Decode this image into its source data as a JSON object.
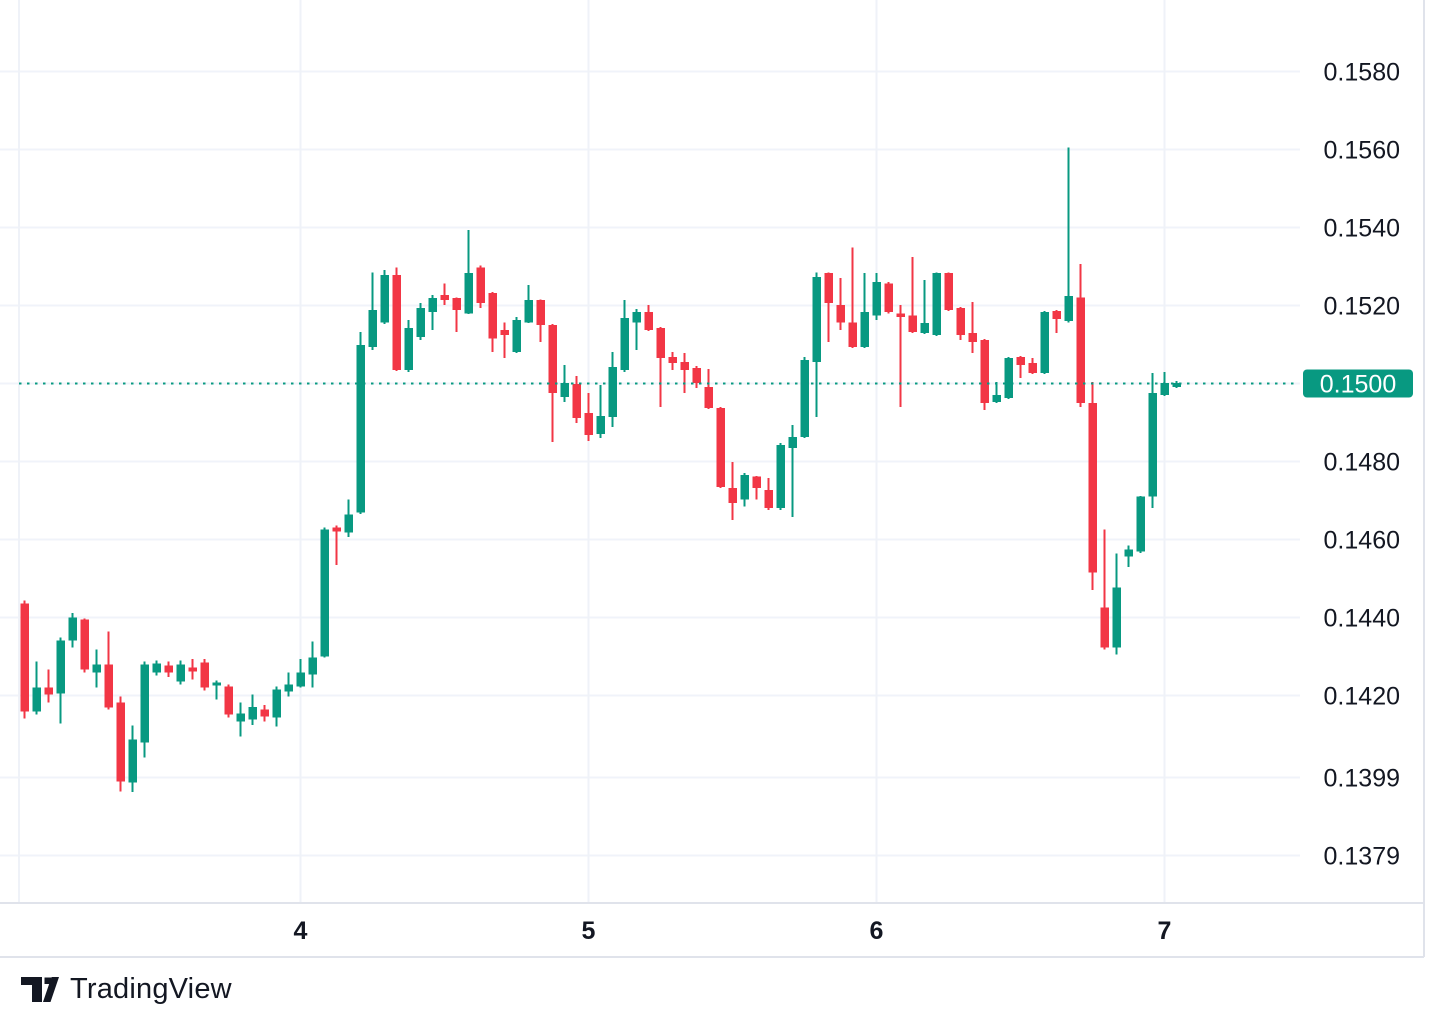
{
  "branding": {
    "logo_text": "TradingView"
  },
  "chart_data": {
    "type": "candlestick",
    "title": "",
    "grid": true,
    "legend": false,
    "timeframe_hint": "hourly candles, day boundaries labeled",
    "colors": {
      "background": "#FFFFFF",
      "up": "#089981",
      "down": "#F23645",
      "grid_horizontal": "#F0F3FA",
      "grid_vertical": "#EFF2F8",
      "axis_border": "#E0E3EB",
      "axis_text": "#131722",
      "last_price_line": "#089981",
      "badge_bg": "#089981",
      "badge_text": "#FFFFFF",
      "logo_color": "#131722"
    },
    "price_axis_ticks": [
      {
        "label": "0.1580",
        "price": 0.158
      },
      {
        "label": "0.1560",
        "price": 0.156
      },
      {
        "label": "0.1540",
        "price": 0.154
      },
      {
        "label": "0.1520",
        "price": 0.152
      },
      {
        "label": "0.1500",
        "price": 0.15
      },
      {
        "label": "0.1480",
        "price": 0.148
      },
      {
        "label": "0.1460",
        "price": 0.146
      },
      {
        "label": "0.1440",
        "price": 0.144
      },
      {
        "label": "0.1420",
        "price": 0.142
      },
      {
        "label": "0.1399",
        "price": 0.1399
      },
      {
        "label": "0.1379",
        "price": 0.1379
      }
    ],
    "time_axis_labels": [
      {
        "label": "4",
        "candle_index": 23
      },
      {
        "label": "5",
        "candle_index": 47
      },
      {
        "label": "6",
        "candle_index": 71
      },
      {
        "label": "7",
        "candle_index": 95
      }
    ],
    "last_price": 0.15,
    "last_price_label": "0.1500",
    "candles": {
      "format": [
        "open",
        "high",
        "low",
        "close"
      ],
      "values": [
        [
          0.14436,
          0.14443,
          0.14141,
          0.14159
        ],
        [
          0.14159,
          0.14287,
          0.14151,
          0.1422
        ],
        [
          0.1422,
          0.14267,
          0.14182,
          0.14203
        ],
        [
          0.14205,
          0.14349,
          0.14128,
          0.14341
        ],
        [
          0.14341,
          0.14412,
          0.14323,
          0.144
        ],
        [
          0.14395,
          0.14397,
          0.14259,
          0.14267
        ],
        [
          0.14259,
          0.14318,
          0.1422,
          0.14279
        ],
        [
          0.14279,
          0.14364,
          0.14164,
          0.14169
        ],
        [
          0.14182,
          0.14197,
          0.13954,
          0.1398
        ],
        [
          0.13977,
          0.14123,
          0.13952,
          0.14087
        ],
        [
          0.14079,
          0.14287,
          0.14041,
          0.14279
        ],
        [
          0.14259,
          0.1429,
          0.14251,
          0.14282
        ],
        [
          0.14277,
          0.14287,
          0.14248,
          0.14259
        ],
        [
          0.14236,
          0.1429,
          0.14228,
          0.14279
        ],
        [
          0.14272,
          0.14293,
          0.14241,
          0.14262
        ],
        [
          0.14285,
          0.14293,
          0.14213,
          0.1422
        ],
        [
          0.14226,
          0.14238,
          0.1419,
          0.14233
        ],
        [
          0.14223,
          0.14228,
          0.14144,
          0.14151
        ],
        [
          0.14133,
          0.14182,
          0.14095,
          0.14154
        ],
        [
          0.14138,
          0.14202,
          0.14125,
          0.14171
        ],
        [
          0.14164,
          0.14176,
          0.14133,
          0.14146
        ],
        [
          0.14144,
          0.14223,
          0.1412,
          0.14215
        ],
        [
          0.1421,
          0.14259,
          0.14197,
          0.14228
        ],
        [
          0.14223,
          0.14293,
          0.1422,
          0.14259
        ],
        [
          0.14254,
          0.14338,
          0.1422,
          0.14298
        ],
        [
          0.143,
          0.14631,
          0.14298,
          0.14626
        ],
        [
          0.14631,
          0.14636,
          0.14535,
          0.1462
        ],
        [
          0.14618,
          0.14702,
          0.14607,
          0.14664
        ],
        [
          0.14669,
          0.15132,
          0.14666,
          0.15099
        ],
        [
          0.15093,
          0.15285,
          0.15086,
          0.15188
        ],
        [
          0.15157,
          0.15291,
          0.15152,
          0.15278
        ],
        [
          0.15278,
          0.15298,
          0.15032,
          0.15035
        ],
        [
          0.15035,
          0.15163,
          0.15029,
          0.15142
        ],
        [
          0.15119,
          0.15206,
          0.15111,
          0.15193
        ],
        [
          0.15183,
          0.15227,
          0.15137,
          0.15219
        ],
        [
          0.15227,
          0.15257,
          0.15201,
          0.15214
        ],
        [
          0.15219,
          0.15221,
          0.15132,
          0.15188
        ],
        [
          0.1518,
          0.15393,
          0.15178,
          0.15283
        ],
        [
          0.15298,
          0.15303,
          0.15193,
          0.15206
        ],
        [
          0.15232,
          0.15234,
          0.15081,
          0.15116
        ],
        [
          0.15137,
          0.15157,
          0.15065,
          0.15124
        ],
        [
          0.15081,
          0.1517,
          0.15078,
          0.15163
        ],
        [
          0.15157,
          0.15252,
          0.15155,
          0.15214
        ],
        [
          0.15214,
          0.15216,
          0.15106,
          0.1515
        ],
        [
          0.1515,
          0.15152,
          0.1485,
          0.14976
        ],
        [
          0.14965,
          0.15047,
          0.14953,
          0.15001
        ],
        [
          0.14999,
          0.15019,
          0.14899,
          0.14912
        ],
        [
          0.14925,
          0.14976,
          0.14853,
          0.14868
        ],
        [
          0.14871,
          0.14996,
          0.1486,
          0.14917
        ],
        [
          0.14914,
          0.15081,
          0.14889,
          0.15042
        ],
        [
          0.15035,
          0.15214,
          0.15029,
          0.15168
        ],
        [
          0.15157,
          0.15191,
          0.15086,
          0.15183
        ],
        [
          0.15183,
          0.15201,
          0.15134,
          0.15137
        ],
        [
          0.15142,
          0.15145,
          0.1494,
          0.15065
        ],
        [
          0.15068,
          0.15081,
          0.15035,
          0.15052
        ],
        [
          0.15055,
          0.15078,
          0.14976,
          0.15035
        ],
        [
          0.1504,
          0.15045,
          0.14988,
          0.15001
        ],
        [
          0.14991,
          0.15037,
          0.14935,
          0.14937
        ],
        [
          0.14937,
          0.1494,
          0.14732,
          0.14735
        ],
        [
          0.14732,
          0.14799,
          0.1465,
          0.14694
        ],
        [
          0.14702,
          0.14771,
          0.14684,
          0.14766
        ],
        [
          0.14761,
          0.14763,
          0.14702,
          0.14732
        ],
        [
          0.14727,
          0.14758,
          0.14676,
          0.14681
        ],
        [
          0.14681,
          0.14847,
          0.14676,
          0.14842
        ],
        [
          0.14835,
          0.14894,
          0.14658,
          0.14863
        ],
        [
          0.14863,
          0.15068,
          0.1486,
          0.1506
        ],
        [
          0.15055,
          0.15285,
          0.14914,
          0.15273
        ],
        [
          0.15283,
          0.15285,
          0.15106,
          0.15206
        ],
        [
          0.15201,
          0.1527,
          0.15137,
          0.15157
        ],
        [
          0.15157,
          0.15349,
          0.15091,
          0.15093
        ],
        [
          0.15093,
          0.15283,
          0.15091,
          0.15183
        ],
        [
          0.15175,
          0.15283,
          0.15163,
          0.1526
        ],
        [
          0.15257,
          0.1526,
          0.1518,
          0.15183
        ],
        [
          0.1518,
          0.15201,
          0.1494,
          0.1517
        ],
        [
          0.15175,
          0.15324,
          0.15129,
          0.15132
        ],
        [
          0.15129,
          0.15265,
          0.15127,
          0.15155
        ],
        [
          0.15124,
          0.15285,
          0.15122,
          0.15283
        ],
        [
          0.15283,
          0.15285,
          0.15186,
          0.15188
        ],
        [
          0.15193,
          0.15196,
          0.15111,
          0.15124
        ],
        [
          0.15129,
          0.15209,
          0.15078,
          0.15106
        ],
        [
          0.15111,
          0.15114,
          0.14932,
          0.1495
        ],
        [
          0.14953,
          0.15004,
          0.1495,
          0.14971
        ],
        [
          0.14963,
          0.15068,
          0.1496,
          0.15065
        ],
        [
          0.15068,
          0.1507,
          0.15014,
          0.15047
        ],
        [
          0.15052,
          0.15065,
          0.15024,
          0.15027
        ],
        [
          0.15027,
          0.15186,
          0.15024,
          0.15183
        ],
        [
          0.15186,
          0.15188,
          0.15129,
          0.15165
        ],
        [
          0.1516,
          0.15605,
          0.15157,
          0.15224
        ],
        [
          0.15221,
          0.15306,
          0.1494,
          0.1495
        ],
        [
          0.1495,
          0.15004,
          0.14471,
          0.14515
        ],
        [
          0.14426,
          0.14626,
          0.14318,
          0.14323
        ],
        [
          0.14323,
          0.14564,
          0.14305,
          0.14477
        ],
        [
          0.14556,
          0.14584,
          0.1453,
          0.14574
        ],
        [
          0.14569,
          0.14712,
          0.14566,
          0.1471
        ],
        [
          0.1471,
          0.15027,
          0.14681,
          0.14976
        ],
        [
          0.14971,
          0.15029,
          0.14968,
          0.15001
        ],
        [
          0.14991,
          0.15006,
          0.14988,
          0.15001
        ]
      ]
    }
  }
}
